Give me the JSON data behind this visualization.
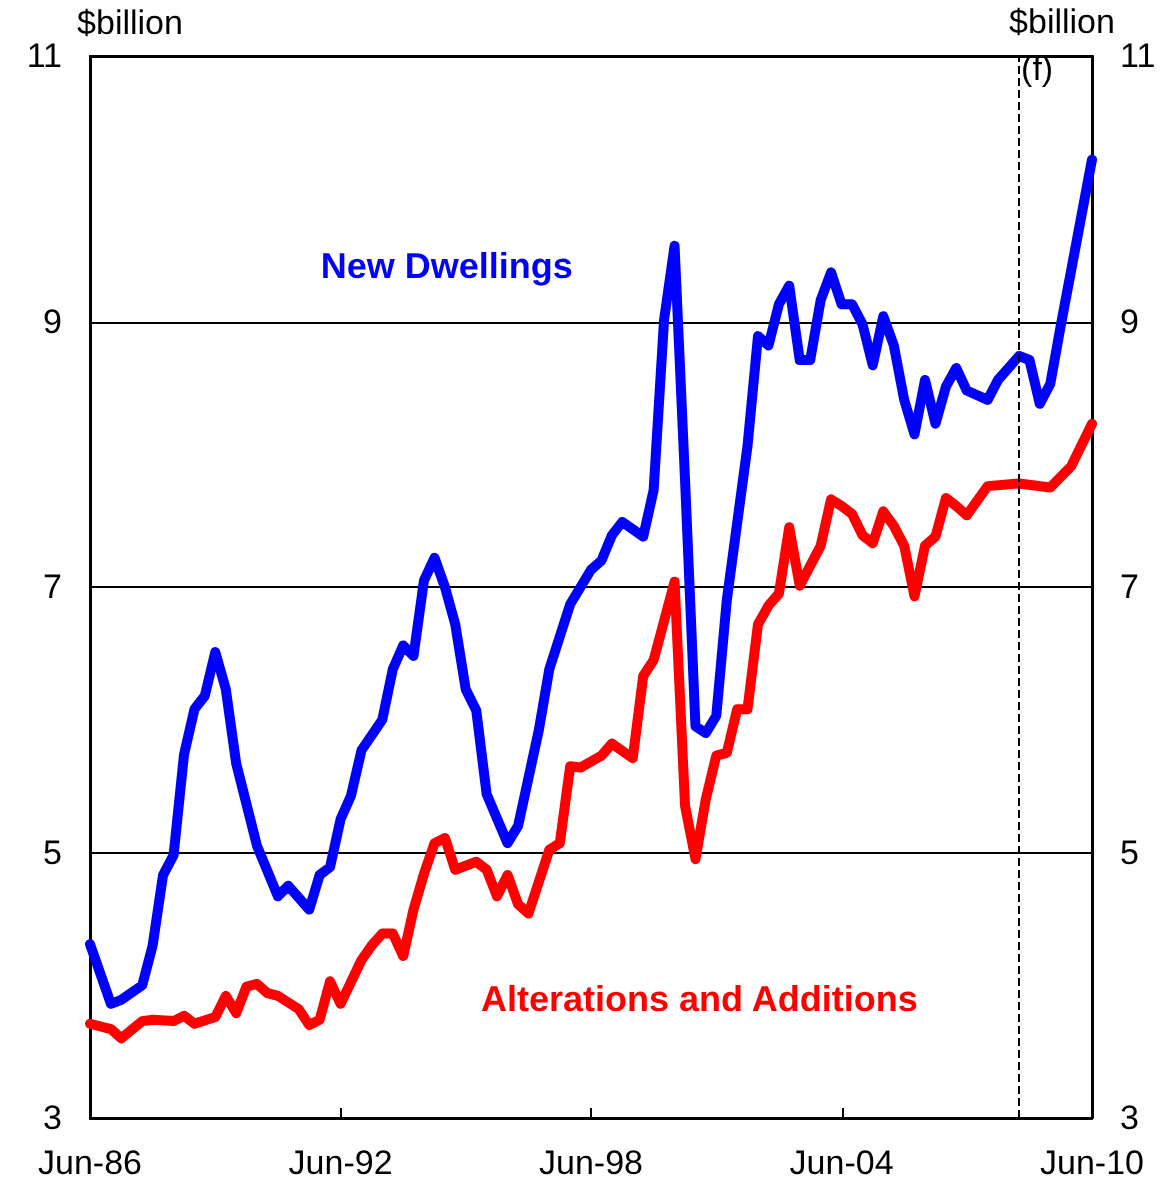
{
  "chart_data": {
    "type": "line",
    "ylabel": "$billion",
    "y2label": "$billion",
    "xlim": [
      "1986-06",
      "2010-06"
    ],
    "xticks": [
      {
        "value": "1986-06",
        "label": "Jun-86"
      },
      {
        "value": "1992-06",
        "label": "Jun-92"
      },
      {
        "value": "1998-06",
        "label": "Jun-98"
      },
      {
        "value": "2004-06",
        "label": "Jun-04"
      },
      {
        "value": "2010-06",
        "label": "Jun-10"
      }
    ],
    "ylim": [
      3,
      11
    ],
    "yticks": [
      3,
      5,
      7,
      9,
      11
    ],
    "y2lim": [
      3,
      11
    ],
    "y2ticks": [
      3,
      5,
      7,
      9,
      11
    ],
    "grid": "y",
    "legend": false,
    "marker": "none",
    "line_style": "solid",
    "ref_lines": [
      {
        "axis": "x",
        "value": "2008-09",
        "label": "(f)",
        "line_style": "dashed",
        "color": "#000000"
      }
    ],
    "series": [
      {
        "name": "New Dwellings",
        "color": "#0000ff",
        "x": [
          "1986-06",
          "1986-12",
          "1987-03",
          "1987-09",
          "1987-12",
          "1988-03",
          "1988-06",
          "1988-09",
          "1988-12",
          "1989-03",
          "1989-06",
          "1989-09",
          "1989-12",
          "1990-06",
          "1990-12",
          "1991-03",
          "1991-09",
          "1991-12",
          "1992-03",
          "1992-06",
          "1992-09",
          "1992-12",
          "1993-06",
          "1993-09",
          "1993-12",
          "1994-03",
          "1994-06",
          "1994-09",
          "1994-12",
          "1995-03",
          "1995-06",
          "1995-09",
          "1995-12",
          "1996-06",
          "1996-09",
          "1997-03",
          "1997-06",
          "1997-12",
          "1998-06",
          "1998-09",
          "1998-12",
          "1999-03",
          "1999-09",
          "1999-12",
          "2000-03",
          "2000-06",
          "2000-09",
          "2000-12",
          "2001-03",
          "2001-06",
          "2001-09",
          "2002-03",
          "2002-06",
          "2002-09",
          "2002-12",
          "2003-03",
          "2003-06",
          "2003-09",
          "2003-12",
          "2004-03",
          "2004-06",
          "2004-09",
          "2004-12",
          "2005-03",
          "2005-06",
          "2005-09",
          "2005-12",
          "2006-03",
          "2006-06",
          "2006-09",
          "2006-12",
          "2007-03",
          "2007-06",
          "2007-12",
          "2008-03",
          "2008-09",
          "2008-12",
          "2009-03",
          "2009-06",
          "2009-09",
          "2010-06"
        ],
        "values": [
          4.31,
          3.86,
          3.89,
          4.0,
          4.3,
          4.83,
          4.98,
          5.74,
          6.08,
          6.18,
          6.51,
          6.23,
          5.67,
          5.05,
          4.67,
          4.75,
          4.57,
          4.83,
          4.89,
          5.25,
          5.43,
          5.77,
          6.0,
          6.38,
          6.56,
          6.48,
          7.05,
          7.22,
          7.0,
          6.72,
          6.23,
          6.07,
          5.44,
          5.07,
          5.2,
          5.92,
          6.38,
          6.87,
          7.13,
          7.2,
          7.39,
          7.49,
          7.38,
          7.73,
          9.01,
          9.57,
          7.8,
          5.95,
          5.9,
          6.03,
          6.9,
          8.06,
          8.89,
          8.82,
          9.13,
          9.27,
          8.71,
          8.71,
          9.16,
          9.37,
          9.13,
          9.13,
          8.98,
          8.67,
          9.04,
          8.82,
          8.41,
          8.15,
          8.56,
          8.23,
          8.51,
          8.65,
          8.48,
          8.41,
          8.56,
          8.74,
          8.71,
          8.38,
          8.53,
          8.97,
          10.22
        ]
      },
      {
        "name": "Alterations and Additions",
        "color": "#ff0000",
        "x": [
          "1986-06",
          "1986-12",
          "1987-03",
          "1987-09",
          "1987-12",
          "1988-06",
          "1988-09",
          "1988-12",
          "1989-06",
          "1989-09",
          "1989-12",
          "1990-03",
          "1990-06",
          "1990-09",
          "1990-12",
          "1991-06",
          "1991-09",
          "1991-12",
          "1992-03",
          "1992-06",
          "1992-12",
          "1993-03",
          "1993-06",
          "1993-09",
          "1993-12",
          "1994-03",
          "1994-06",
          "1994-09",
          "1994-12",
          "1995-03",
          "1995-09",
          "1995-12",
          "1996-03",
          "1996-06",
          "1996-09",
          "1996-12",
          "1997-06",
          "1997-09",
          "1997-12",
          "1998-03",
          "1998-09",
          "1998-12",
          "1999-06",
          "1999-09",
          "1999-12",
          "2000-06",
          "2000-09",
          "2000-12",
          "2001-03",
          "2001-06",
          "2001-09",
          "2001-12",
          "2002-03",
          "2002-06",
          "2002-09",
          "2002-12",
          "2003-03",
          "2003-06",
          "2003-12",
          "2004-03",
          "2004-06",
          "2004-09",
          "2004-12",
          "2005-03",
          "2005-06",
          "2005-09",
          "2005-12",
          "2006-03",
          "2006-06",
          "2006-09",
          "2006-12",
          "2007-03",
          "2007-06",
          "2007-12",
          "2008-09",
          "2009-06",
          "2009-12",
          "2010-06"
        ],
        "values": [
          3.71,
          3.67,
          3.6,
          3.73,
          3.74,
          3.73,
          3.77,
          3.71,
          3.76,
          3.92,
          3.79,
          3.99,
          4.01,
          3.94,
          3.92,
          3.82,
          3.7,
          3.74,
          4.03,
          3.86,
          4.19,
          4.3,
          4.39,
          4.39,
          4.22,
          4.57,
          4.84,
          5.07,
          5.11,
          4.87,
          4.93,
          4.87,
          4.67,
          4.83,
          4.61,
          4.54,
          5.02,
          5.07,
          5.65,
          5.64,
          5.73,
          5.82,
          5.71,
          6.33,
          6.45,
          7.04,
          5.35,
          4.95,
          5.4,
          5.73,
          5.75,
          6.08,
          6.08,
          6.72,
          6.86,
          6.95,
          7.45,
          7.01,
          7.31,
          7.66,
          7.61,
          7.55,
          7.39,
          7.33,
          7.57,
          7.46,
          7.31,
          6.93,
          7.31,
          7.38,
          7.67,
          7.61,
          7.54,
          7.76,
          7.78,
          7.75,
          7.91,
          8.23
        ]
      }
    ]
  }
}
